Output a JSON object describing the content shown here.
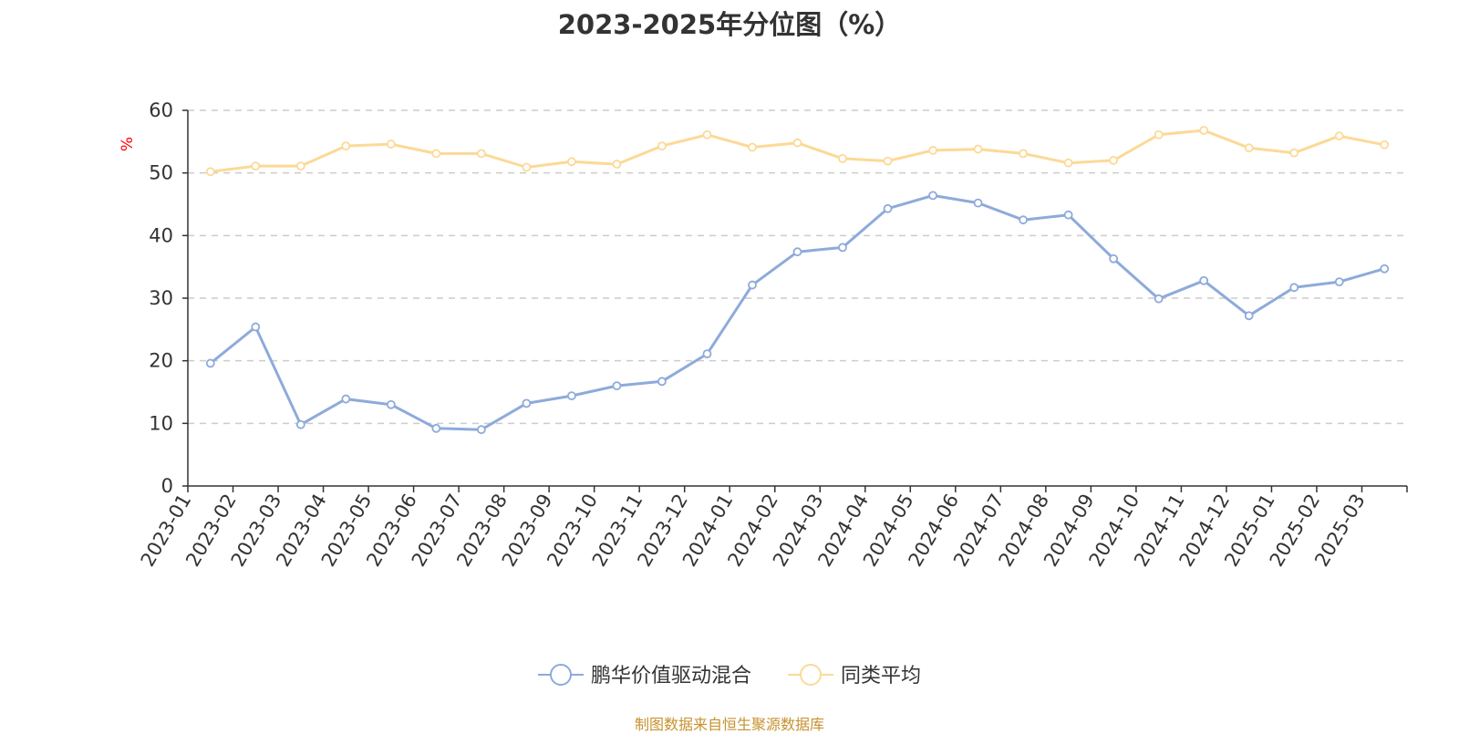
{
  "title": "2023-2025年分位图（%）",
  "source": "制图数据来自恒生聚源数据库",
  "chart_data": {
    "type": "line",
    "title": "2023-2025年分位图（%）",
    "ylabel": "%",
    "xlabel": "",
    "ylim": [
      0,
      60
    ],
    "yticks": [
      0,
      10,
      20,
      30,
      40,
      50,
      60
    ],
    "grid": true,
    "legend_position": "bottom-center",
    "x": [
      "2023-01",
      "2023-02",
      "2023-03",
      "2023-04",
      "2023-05",
      "2023-06",
      "2023-07",
      "2023-08",
      "2023-09",
      "2023-10",
      "2023-11",
      "2023-12",
      "2024-01",
      "2024-02",
      "2024-03",
      "2024-04",
      "2024-05",
      "2024-06",
      "2024-07",
      "2024-08",
      "2024-09",
      "2024-10",
      "2024-11",
      "2024-12",
      "2025-01",
      "2025-02",
      "2025-03"
    ],
    "series": [
      {
        "name": "鹏华价值驱动混合",
        "color": "#8eaadb",
        "values": [
          19.6,
          25.4,
          9.8,
          13.9,
          13.0,
          9.2,
          9.0,
          13.2,
          14.4,
          16.0,
          16.7,
          21.1,
          32.1,
          37.4,
          38.1,
          44.3,
          46.4,
          45.2,
          42.5,
          43.3,
          36.3,
          29.9,
          32.8,
          27.2,
          31.7,
          32.6,
          34.7
        ]
      },
      {
        "name": "同类平均",
        "color": "#fcd997",
        "values": [
          50.2,
          51.1,
          51.1,
          54.3,
          54.6,
          53.1,
          53.1,
          50.9,
          51.8,
          51.4,
          54.3,
          56.1,
          54.1,
          54.8,
          52.3,
          51.9,
          53.6,
          53.8,
          53.1,
          51.6,
          52.0,
          56.1,
          56.8,
          54.0,
          53.2,
          55.9,
          54.5
        ]
      }
    ]
  }
}
